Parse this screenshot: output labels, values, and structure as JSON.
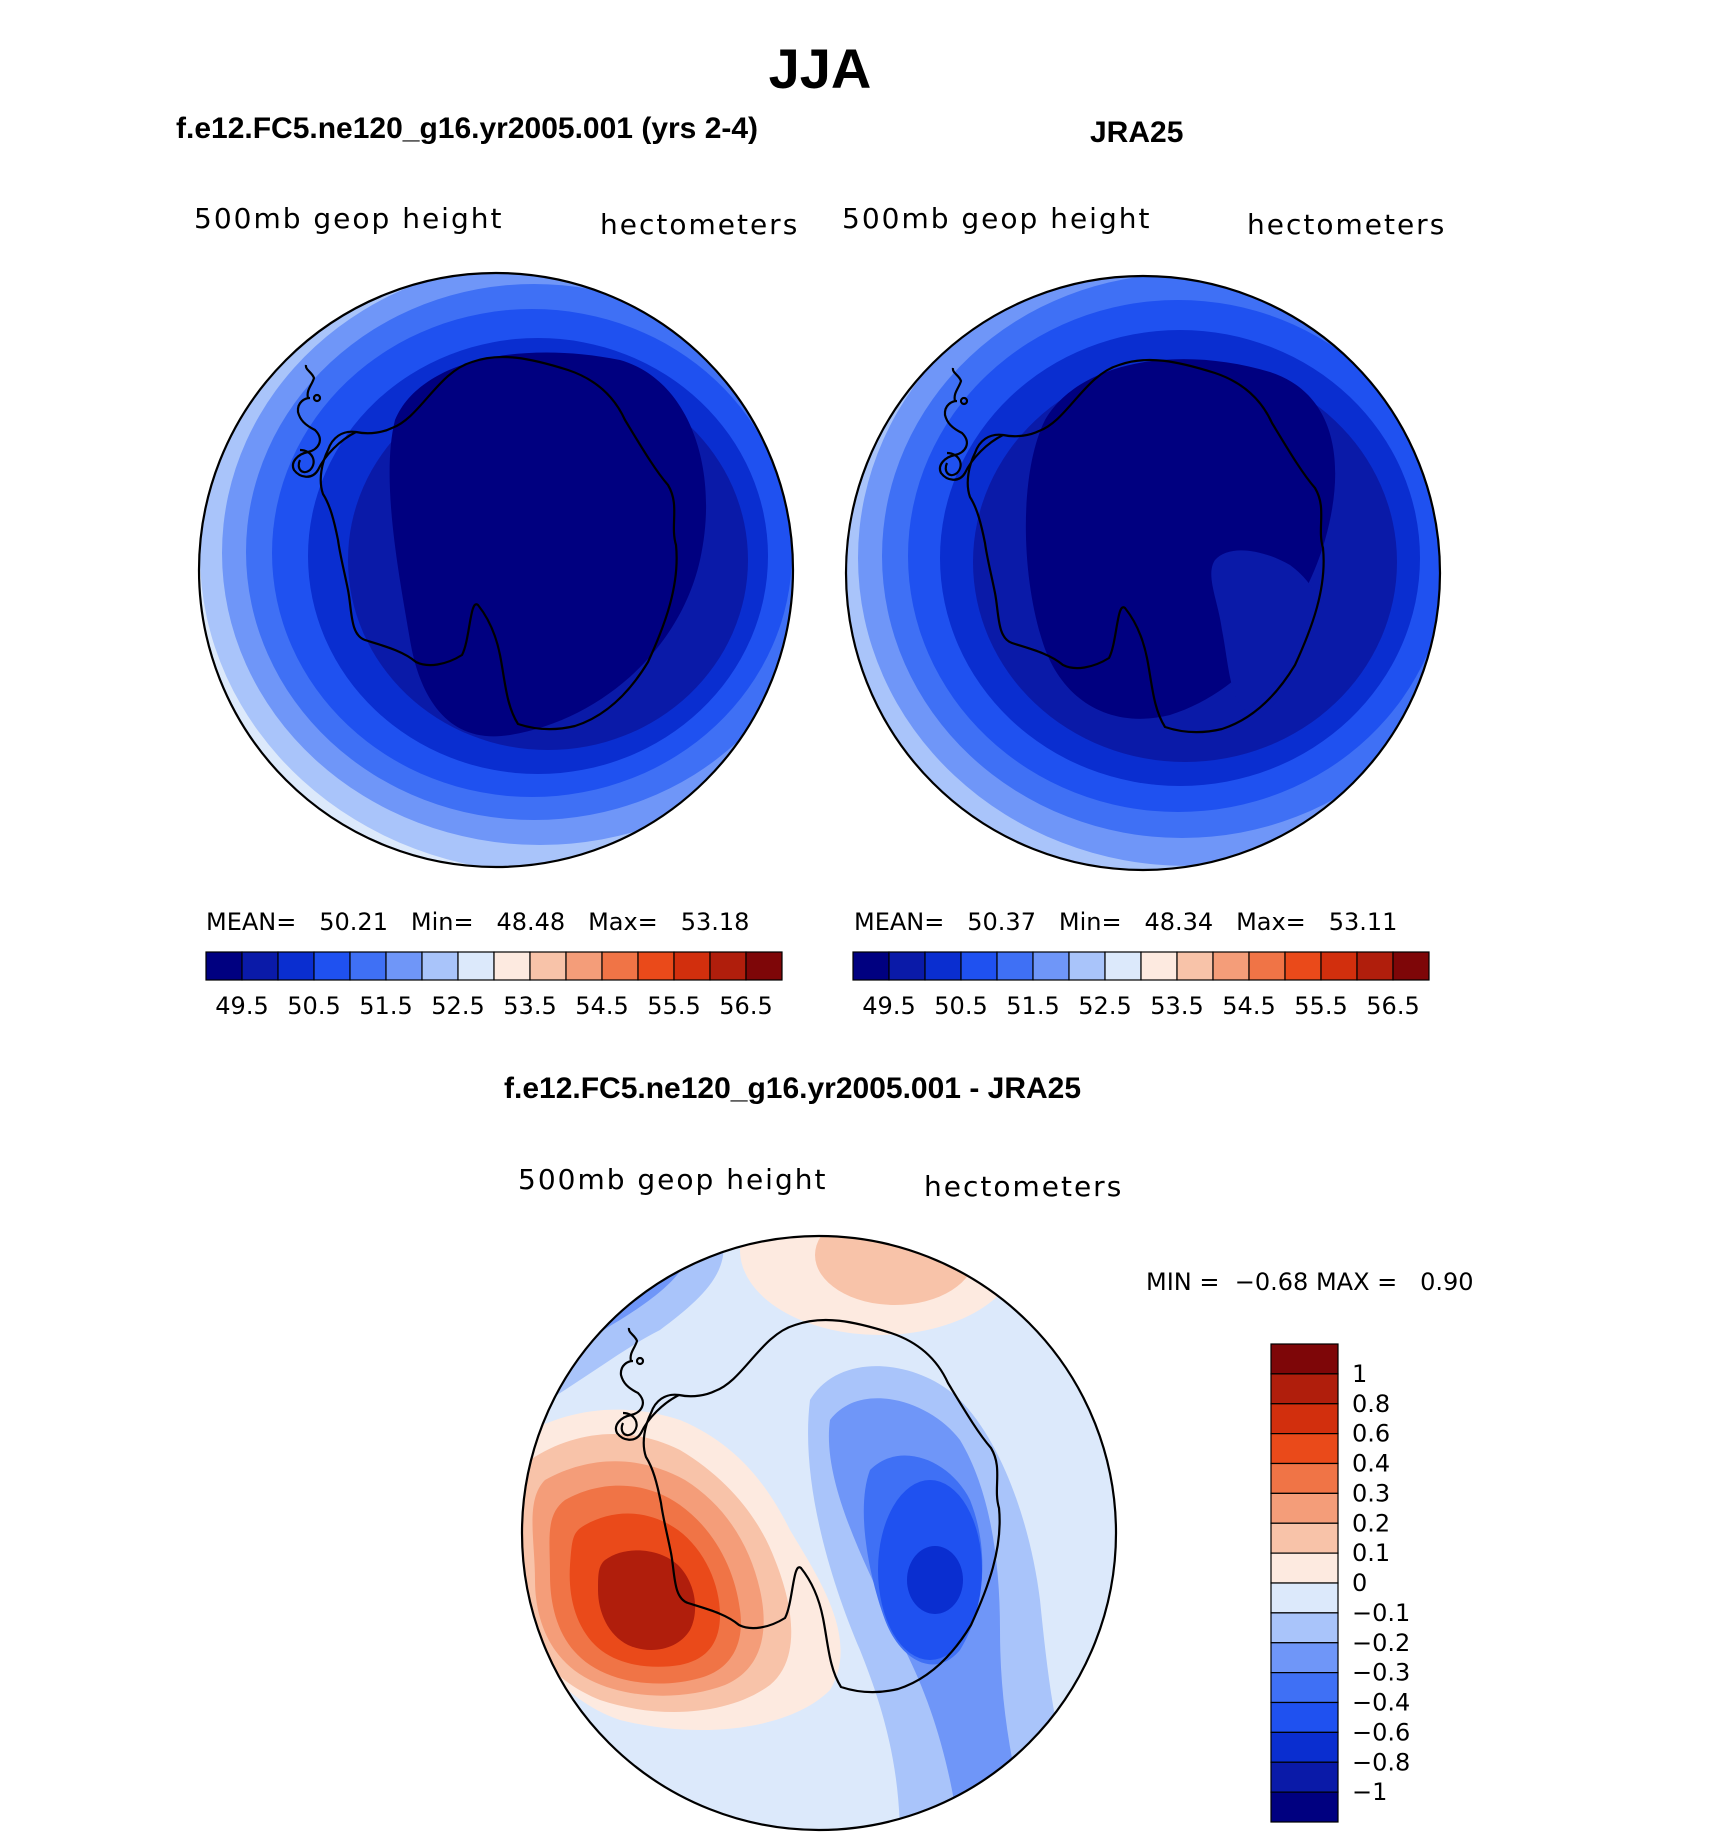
{
  "chart_data": {
    "type": "polar-contour-map",
    "title": "JJA",
    "panels": [
      {
        "id": "model",
        "subtitle": "f.e12.FC5.ne120_g16.yr2005.001 (yrs 2-4)",
        "variable": "500mb geop height",
        "units": "hectometers",
        "stats": [
          {
            "label": "MEAN=",
            "value": "50.21"
          },
          {
            "label": "Min=",
            "value": "48.48"
          },
          {
            "label": "Max=",
            "value": "53.18"
          }
        ],
        "colorbar": {
          "orientation": "horizontal",
          "tick_labels": [
            "49.5",
            "50.5",
            "51.5",
            "52.5",
            "53.5",
            "54.5",
            "55.5",
            "56.5"
          ],
          "colors": [
            "#000080",
            "#0a1aa8",
            "#0a2ed0",
            "#1f51f0",
            "#3f70f5",
            "#6f96f8",
            "#a9c4fa",
            "#dce9fb",
            "#fdeae0",
            "#f8c3a9",
            "#f49d79",
            "#f07446",
            "#ea4a1a",
            "#d22f0d",
            "#b01e0c",
            "#7e0608"
          ]
        }
      },
      {
        "id": "obs",
        "subtitle": "JRA25",
        "variable": "500mb geop height",
        "units": "hectometers",
        "stats": [
          {
            "label": "MEAN=",
            "value": "50.37"
          },
          {
            "label": "Min=",
            "value": "48.34"
          },
          {
            "label": "Max=",
            "value": "53.11"
          }
        ],
        "colorbar": {
          "orientation": "horizontal",
          "tick_labels": [
            "49.5",
            "50.5",
            "51.5",
            "52.5",
            "53.5",
            "54.5",
            "55.5",
            "56.5"
          ],
          "colors": [
            "#000080",
            "#0a1aa8",
            "#0a2ed0",
            "#1f51f0",
            "#3f70f5",
            "#6f96f8",
            "#a9c4fa",
            "#dce9fb",
            "#fdeae0",
            "#f8c3a9",
            "#f49d79",
            "#f07446",
            "#ea4a1a",
            "#d22f0d",
            "#b01e0c",
            "#7e0608"
          ]
        }
      },
      {
        "id": "diff",
        "subtitle": "f.e12.FC5.ne120_g16.yr2005.001 - JRA25",
        "variable": "500mb geop height",
        "units": "hectometers",
        "minmax": {
          "min_label": "MIN =",
          "min_value": "−0.68",
          "max_label": "MAX =",
          "max_value": "0.90"
        },
        "colorbar": {
          "orientation": "vertical",
          "tick_labels": [
            "1",
            "0.8",
            "0.6",
            "0.4",
            "0.3",
            "0.2",
            "0.1",
            "0",
            "−0.1",
            "−0.2",
            "−0.3",
            "−0.4",
            "−0.6",
            "−0.8",
            "−1"
          ],
          "colors": [
            "#7e0608",
            "#b01e0c",
            "#d22f0d",
            "#ea4a1a",
            "#f07446",
            "#f49d79",
            "#f8c3a9",
            "#fdeae0",
            "#dce9fb",
            "#a9c4fa",
            "#6f96f8",
            "#3f70f5",
            "#1f51f0",
            "#0a2ed0",
            "#0a1aa8",
            "#000080"
          ]
        }
      }
    ]
  }
}
